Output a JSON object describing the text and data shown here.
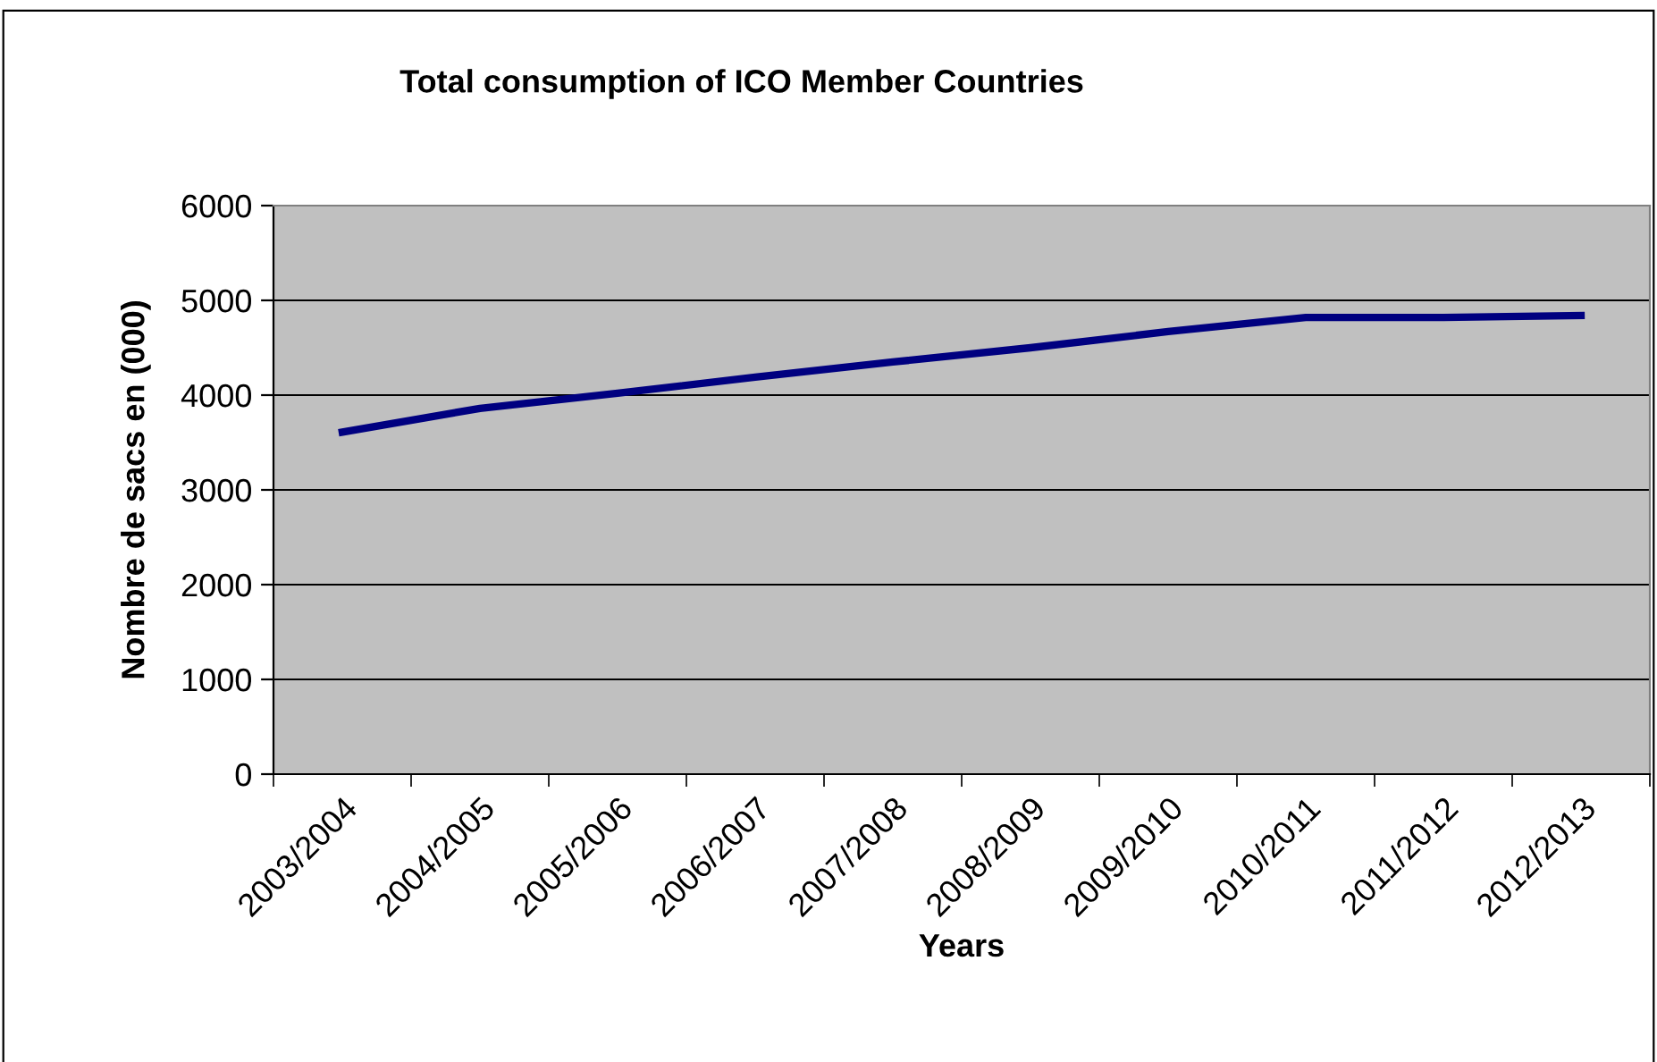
{
  "chart_data": {
    "type": "line",
    "title": "Total consumption of ICO Member Countries",
    "xlabel": "Years",
    "ylabel": "Nombre de sacs en (000)",
    "categories": [
      "2003/2004",
      "2004/2005",
      "2005/2006",
      "2006/2007",
      "2007/2008",
      "2008/2009",
      "2009/2010",
      "2010/2011",
      "2011/2012",
      "2012/2013"
    ],
    "series": [
      {
        "color": "#000080",
        "values": [
          3610,
          3860,
          4020,
          4190,
          4350,
          4500,
          4670,
          4820,
          4820,
          4840
        ]
      }
    ],
    "ylim": [
      0,
      6000
    ],
    "yticks": [
      0,
      1000,
      2000,
      3000,
      4000,
      5000,
      6000
    ],
    "grid": "y",
    "marker": "none",
    "line_style": "solid"
  }
}
